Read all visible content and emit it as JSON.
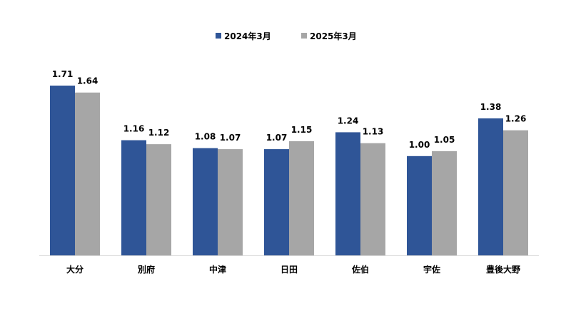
{
  "chart_data": {
    "type": "bar",
    "title": "",
    "xlabel": "",
    "ylabel": "",
    "categories": [
      "大分",
      "別府",
      "中津",
      "日田",
      "佐伯",
      "宇佐",
      "豊後大野"
    ],
    "series": [
      {
        "name": "2024年3月",
        "color": "#2F5597",
        "values": [
          1.71,
          1.16,
          1.08,
          1.07,
          1.24,
          1.0,
          1.38
        ]
      },
      {
        "name": "2025年3月",
        "color": "#A6A6A6",
        "values": [
          1.64,
          1.12,
          1.07,
          1.15,
          1.13,
          1.05,
          1.26
        ]
      }
    ],
    "value_labels": [
      [
        "1.71",
        "1.16",
        "1.08",
        "1.07",
        "1.24",
        "1.00",
        "1.38"
      ],
      [
        "1.64",
        "1.12",
        "1.07",
        "1.15",
        "1.13",
        "1.05",
        "1.26"
      ]
    ],
    "ylim": [
      0,
      1.71
    ],
    "grid": false,
    "legend_position": "top-center",
    "axis_color": "#D9D9D9"
  }
}
